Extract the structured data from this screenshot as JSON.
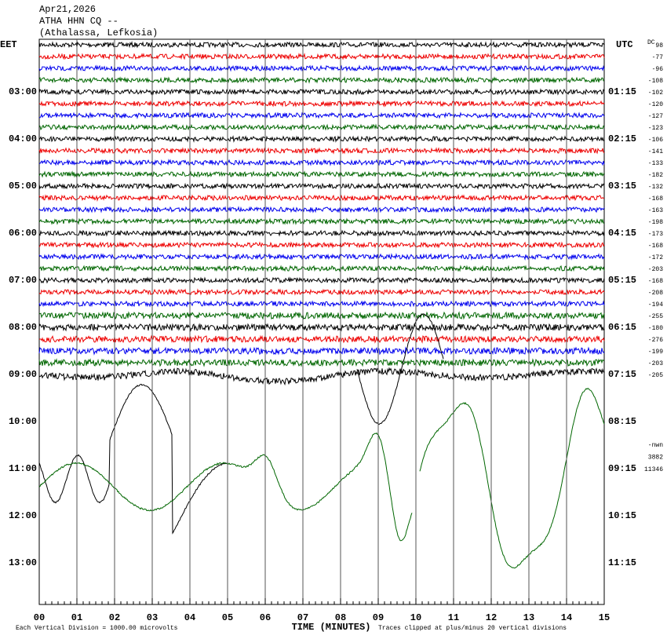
{
  "header": {
    "date": "Apr21,2026",
    "station": "ATHA HHN CQ --",
    "location": "(Athalassa, Lefkosia)"
  },
  "left_zone": "EET",
  "right_zone": "UTC",
  "left_labels": [
    "03:00",
    "04:00",
    "05:00",
    "06:00",
    "07:00",
    "08:00",
    "09:00",
    "10:00",
    "11:00",
    "12:00",
    "13:00"
  ],
  "right_labels": [
    "01:15",
    "02:15",
    "03:15",
    "04:15",
    "05:15",
    "06:15",
    "07:15",
    "08:15",
    "09:15",
    "10:15",
    "11:15"
  ],
  "offset_title": "DC",
  "offsets": [
    "98",
    "-77",
    "-96",
    "-108",
    "-102",
    "-120",
    "-127",
    "-123",
    "-106",
    "-141",
    "-133",
    "-182",
    "-132",
    "-168",
    "-163",
    "-198",
    "-173",
    "-168",
    "-172",
    "-203",
    "-168",
    "-208",
    "-194",
    "-255",
    "-180",
    "-276",
    "-199",
    "-203",
    "-205"
  ],
  "extra": [
    "-nwn",
    "3882",
    "11346"
  ],
  "x_labels": [
    "00",
    "01",
    "02",
    "03",
    "04",
    "05",
    "06",
    "07",
    "08",
    "09",
    "10",
    "11",
    "12",
    "13",
    "14",
    "15"
  ],
  "x_title": "TIME (MINUTES)",
  "footer_left": "Each Vertical Division = 1000.00 microvolts",
  "footer_right": "Traces clipped at plus/minus 20 vertical divisions"
}
